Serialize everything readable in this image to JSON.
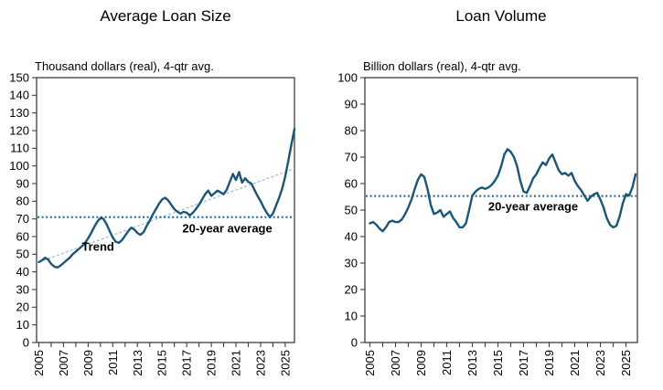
{
  "figure": {
    "background": "#ffffff",
    "series_color": "#1a5775",
    "average_line_color": "#2d74a0",
    "trend_line_color": "#94b5cf",
    "axis_color": "#3d3d3d",
    "text_color": "#000000"
  },
  "chart_data": [
    {
      "type": "line",
      "title": "Average Loan Size",
      "subtitle": "Thousand dollars (real), 4-qtr avg.",
      "ylabel": "",
      "xlabel": "",
      "ylim": [
        0,
        150
      ],
      "yticks": [
        0,
        10,
        20,
        30,
        40,
        50,
        60,
        70,
        80,
        90,
        100,
        110,
        120,
        130,
        140,
        150
      ],
      "xtick_labels": [
        "2005",
        "2007",
        "2009",
        "2011",
        "2013",
        "2015",
        "2017",
        "2019",
        "2021",
        "2023",
        "2025"
      ],
      "xtick_years": [
        2005,
        2007,
        2009,
        2011,
        2013,
        2015,
        2017,
        2019,
        2021,
        2023,
        2025
      ],
      "minor_xticks_every_year": true,
      "grid": false,
      "average_line": {
        "value": 71,
        "label": "20-year average",
        "label_x": 2020.3,
        "label_y": 64.5,
        "style": "dotted"
      },
      "trend": {
        "label": "Trend",
        "x0": 2005.0,
        "y0": 45.5,
        "x1": 2025.75,
        "y1": 98.5,
        "label_x": 2009.8,
        "label_y": 54.5,
        "style": "dashed"
      },
      "series": [
        {
          "name": "Average loan size (thousand dollars, real, 4-qtr avg)",
          "x_start": 2005.0,
          "x_step": 0.25,
          "values": [
            45.5,
            46.5,
            48,
            47,
            44.5,
            43,
            42.5,
            43.5,
            45,
            46.5,
            48,
            50,
            51.5,
            53,
            54.5,
            56.5,
            59,
            62,
            65.5,
            68.5,
            70.5,
            70,
            67,
            63,
            59.5,
            57,
            56.5,
            58,
            60.5,
            63,
            65,
            64,
            62,
            61,
            62.5,
            66,
            69,
            72.5,
            75.5,
            78.5,
            81,
            82,
            80.5,
            78,
            75.5,
            74,
            73,
            74,
            73.5,
            72,
            73.5,
            75.5,
            78,
            81,
            84,
            86,
            83,
            84.5,
            86,
            85,
            84,
            86.5,
            91,
            95.5,
            92,
            96.5,
            90.5,
            93,
            91,
            90,
            86.5,
            83,
            80,
            76.5,
            73.5,
            71,
            73,
            77.5,
            82,
            87,
            94,
            103,
            112,
            121
          ]
        }
      ]
    },
    {
      "type": "line",
      "title": "Loan Volume",
      "subtitle": "Billion dollars (real), 4-qtr avg.",
      "ylabel": "",
      "xlabel": "",
      "ylim": [
        0,
        100
      ],
      "yticks": [
        0,
        10,
        20,
        30,
        40,
        50,
        60,
        70,
        80,
        90,
        100
      ],
      "xtick_labels": [
        "2005",
        "2007",
        "2009",
        "2011",
        "2013",
        "2015",
        "2017",
        "2019",
        "2021",
        "2023",
        "2025"
      ],
      "xtick_years": [
        2005,
        2007,
        2009,
        2011,
        2013,
        2015,
        2017,
        2019,
        2021,
        2023,
        2025
      ],
      "minor_xticks_every_year": true,
      "grid": false,
      "average_line": {
        "value": 55.3,
        "label": "20-year average",
        "label_x": 2017.75,
        "label_y": 51.5,
        "style": "dotted"
      },
      "series": [
        {
          "name": "Loan volume (billion dollars, real, 4-qtr avg)",
          "x_start": 2005.0,
          "x_step": 0.25,
          "values": [
            45,
            45.5,
            44.5,
            43,
            42,
            43.5,
            45.5,
            46,
            45.5,
            45.5,
            46.5,
            48.5,
            51,
            54,
            58,
            61.5,
            63.5,
            62.5,
            58,
            52,
            48.5,
            49,
            50,
            47.5,
            48.5,
            49.5,
            47,
            45.5,
            43.5,
            43.5,
            45,
            50,
            55.5,
            57,
            58,
            58.5,
            58,
            58.5,
            59.5,
            61,
            63,
            66.5,
            71,
            73,
            72,
            70,
            66.5,
            61,
            57,
            56.5,
            59,
            62,
            63.5,
            66,
            68,
            67,
            69.5,
            71,
            68,
            65,
            63.5,
            64,
            63,
            64,
            61,
            59,
            57.5,
            55.5,
            53.5,
            55,
            56,
            56.5,
            54,
            51,
            47,
            44.5,
            43.5,
            44,
            47.5,
            52.5,
            56,
            55.5,
            58.5,
            63.5
          ]
        }
      ]
    }
  ]
}
